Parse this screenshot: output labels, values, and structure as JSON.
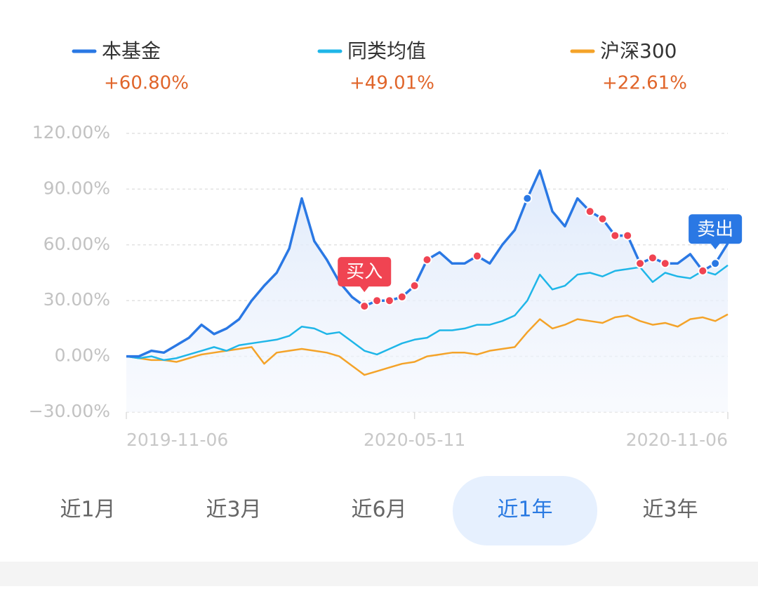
{
  "chart_data": {
    "type": "line",
    "categories": [
      "2019-11-06",
      null,
      null,
      null,
      null,
      null,
      null,
      null,
      null,
      null,
      null,
      null,
      null,
      null,
      null,
      null,
      null,
      null,
      null,
      null,
      null,
      null,
      null,
      "2020-05-11",
      null,
      null,
      null,
      null,
      null,
      null,
      null,
      null,
      null,
      null,
      null,
      null,
      null,
      null,
      null,
      null,
      null,
      null,
      null,
      null,
      null,
      null,
      null,
      null,
      "2020-11-06"
    ],
    "ylim": [
      -30,
      120
    ],
    "yticks": [
      {
        "value": -30,
        "label": "−30.00%"
      },
      {
        "value": 0,
        "label": "0.00%"
      },
      {
        "value": 30,
        "label": "30.00%"
      },
      {
        "value": 60,
        "label": "60.00%"
      },
      {
        "value": 90,
        "label": "90.00%"
      },
      {
        "value": 120,
        "label": "120.00%"
      }
    ],
    "grid": true,
    "series": [
      {
        "name": "本基金",
        "color": "#2a78e4",
        "total_label": "+60.80%",
        "values": [
          0,
          0,
          3,
          2,
          6,
          10,
          17,
          12,
          15,
          20,
          30,
          38,
          45,
          58,
          85,
          62,
          52,
          40,
          32,
          27,
          30,
          30,
          32,
          38,
          52,
          56,
          50,
          50,
          54,
          50,
          60,
          68,
          85,
          100,
          78,
          70,
          85,
          78,
          74,
          65,
          65,
          50,
          53,
          50,
          50,
          55,
          46,
          50,
          60.8
        ]
      },
      {
        "name": "同类均值",
        "color": "#1fb6e8",
        "total_label": "+49.01%",
        "values": [
          0,
          -1,
          0,
          -2,
          -1,
          1,
          3,
          5,
          3,
          6,
          7,
          8,
          9,
          11,
          16,
          15,
          12,
          13,
          8,
          3,
          1,
          4,
          7,
          9,
          10,
          14,
          14,
          15,
          17,
          17,
          19,
          22,
          30,
          44,
          36,
          38,
          44,
          45,
          43,
          46,
          47,
          48,
          40,
          45,
          43,
          42,
          46,
          44,
          49.01
        ]
      },
      {
        "name": "沪深300",
        "color": "#f4a329",
        "total_label": "+22.61%",
        "values": [
          0,
          -1,
          -2,
          -2,
          -3,
          -1,
          1,
          2,
          3,
          4,
          5,
          -4,
          2,
          3,
          4,
          3,
          2,
          0,
          -5,
          -10,
          -8,
          -6,
          -4,
          -3,
          0,
          1,
          2,
          2,
          1,
          3,
          4,
          5,
          13,
          20,
          15,
          17,
          20,
          19,
          18,
          21,
          22,
          19,
          17,
          18,
          16,
          20,
          21,
          19,
          22.61
        ]
      }
    ],
    "buy_points": [
      19,
      20,
      21,
      22,
      23,
      24,
      28,
      37,
      38,
      39,
      40,
      41,
      42,
      43,
      46
    ],
    "buy_color": "#f04452",
    "sell_points": [
      32,
      47
    ],
    "sell_color": "#2a78e4",
    "annotations": [
      {
        "text": "买入",
        "index": 19,
        "color": "#f04452"
      },
      {
        "text": "卖出",
        "index": 47,
        "color": "#2a78e4"
      }
    ]
  },
  "tabs": {
    "items": [
      "近1月",
      "近3月",
      "近6月",
      "近1年",
      "近3年"
    ],
    "active": 3
  }
}
